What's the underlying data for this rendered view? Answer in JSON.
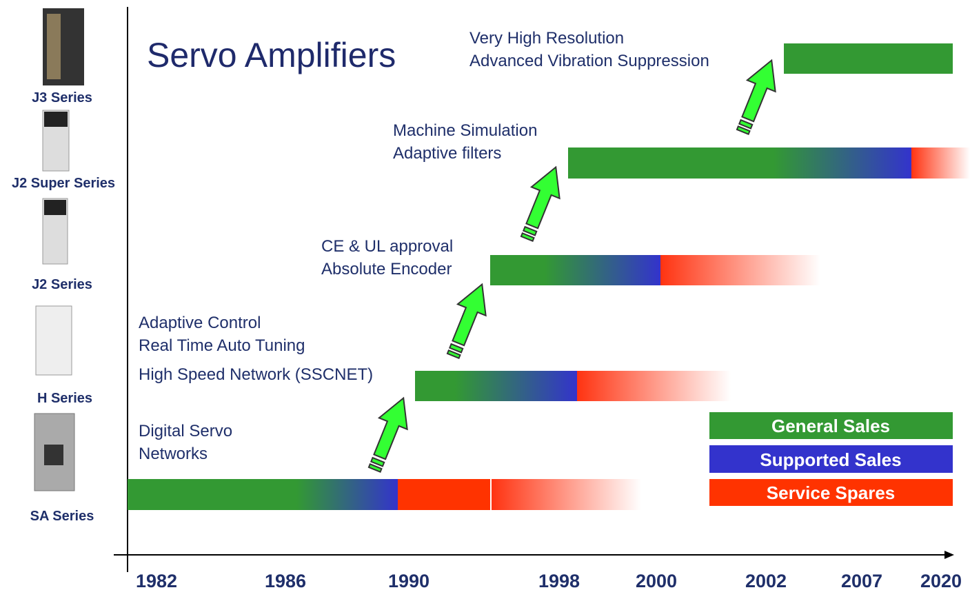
{
  "title": "Servo Amplifiers",
  "products": [
    "J3 Series",
    "J2 Super Series",
    "J2 Series",
    "H Series",
    "SA Series"
  ],
  "features": {
    "sa": [
      "Digital Servo",
      "Networks"
    ],
    "h": [
      "Adaptive Control",
      "Real Time Auto Tuning",
      "High Speed Network (SSCNET)"
    ],
    "j2": [
      "CE & UL approval",
      "Absolute Encoder"
    ],
    "j2s": [
      "Machine Simulation",
      "Adaptive filters"
    ],
    "j3": [
      "Very High Resolution",
      "Advanced Vibration Suppression"
    ]
  },
  "years": [
    "1982",
    "1986",
    "1990",
    "1998",
    "2000",
    "2002",
    "2007",
    "2020"
  ],
  "legend": [
    "General Sales",
    "Supported Sales",
    "Service Spares"
  ]
}
